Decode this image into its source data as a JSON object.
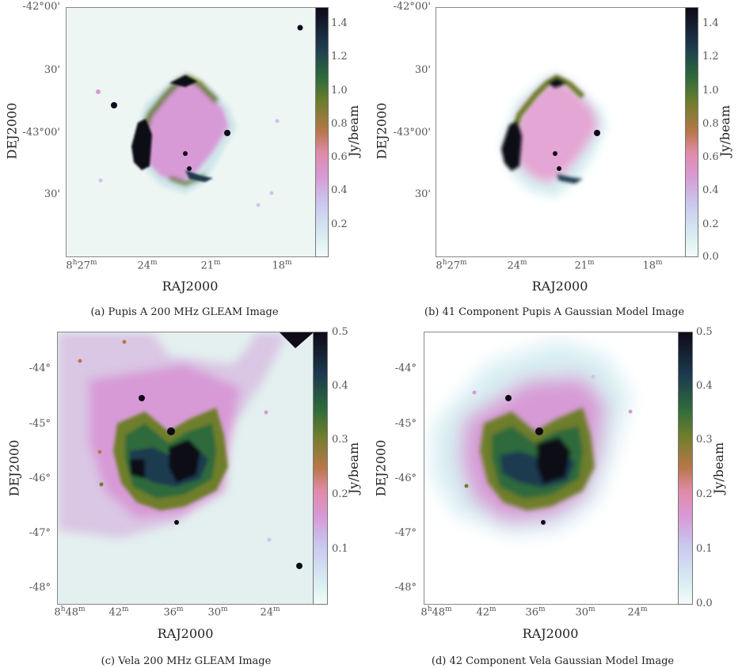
{
  "panels": [
    {
      "caption": "(a) Pupis A 200 MHz GLEAM Image",
      "xlabel": "RAJ2000",
      "ylabel": "DEJ2000",
      "cblabel": "Jy/beam",
      "yticks": [
        "-42°00'",
        "30'",
        "-43°00'",
        "30'"
      ],
      "xticks": [
        "8h27m",
        "24m",
        "21m",
        "18m"
      ],
      "cbticks": [
        "1.4",
        "1.2",
        "1.0",
        "0.8",
        "0.6",
        "0.4",
        "0.2"
      ]
    },
    {
      "caption": "(b) 41 Component Pupis A Gaussian Model Image",
      "xlabel": "RAJ2000",
      "ylabel": "DEJ2000",
      "cblabel": "Jy/beam",
      "yticks": [
        "-42°00'",
        "30'",
        "-43°00'",
        "30'"
      ],
      "xticks": [
        "8h27m",
        "24m",
        "21m",
        "18m"
      ],
      "cbticks": [
        "1.4",
        "1.2",
        "1.0",
        "0.8",
        "0.6",
        "0.4",
        "0.2",
        "0.0"
      ]
    },
    {
      "caption": "(c) Vela 200 MHz GLEAM Image",
      "xlabel": "RAJ2000",
      "ylabel": "DEJ2000",
      "cblabel": "Jy/beam",
      "yticks": [
        "-44°",
        "-45°",
        "-46°",
        "-47°",
        "-48°"
      ],
      "xticks": [
        "8h48m",
        "42m",
        "36m",
        "30m",
        "24m"
      ],
      "cbticks": [
        "0.5",
        "0.4",
        "0.3",
        "0.2",
        "0.1"
      ]
    },
    {
      "caption": "(d) 42 Component Vela Gaussian Model Image",
      "xlabel": "RAJ2000",
      "ylabel": "DEJ2000",
      "cblabel": "Jy/beam",
      "yticks": [
        "-44°",
        "-45°",
        "-46°",
        "-47°",
        "-48°"
      ],
      "xticks": [
        "8h48m",
        "42m",
        "36m",
        "30m",
        "24m"
      ],
      "cbticks": [
        "0.5",
        "0.4",
        "0.3",
        "0.2",
        "0.1",
        "0.0"
      ]
    }
  ],
  "colormap": [
    "#f4fbf9",
    "#d8eef2",
    "#c9c6ee",
    "#d79ad6",
    "#e08aa6",
    "#b9774a",
    "#6e7e2c",
    "#2d6a3b",
    "#1d3b4f",
    "#0e0a18"
  ]
}
